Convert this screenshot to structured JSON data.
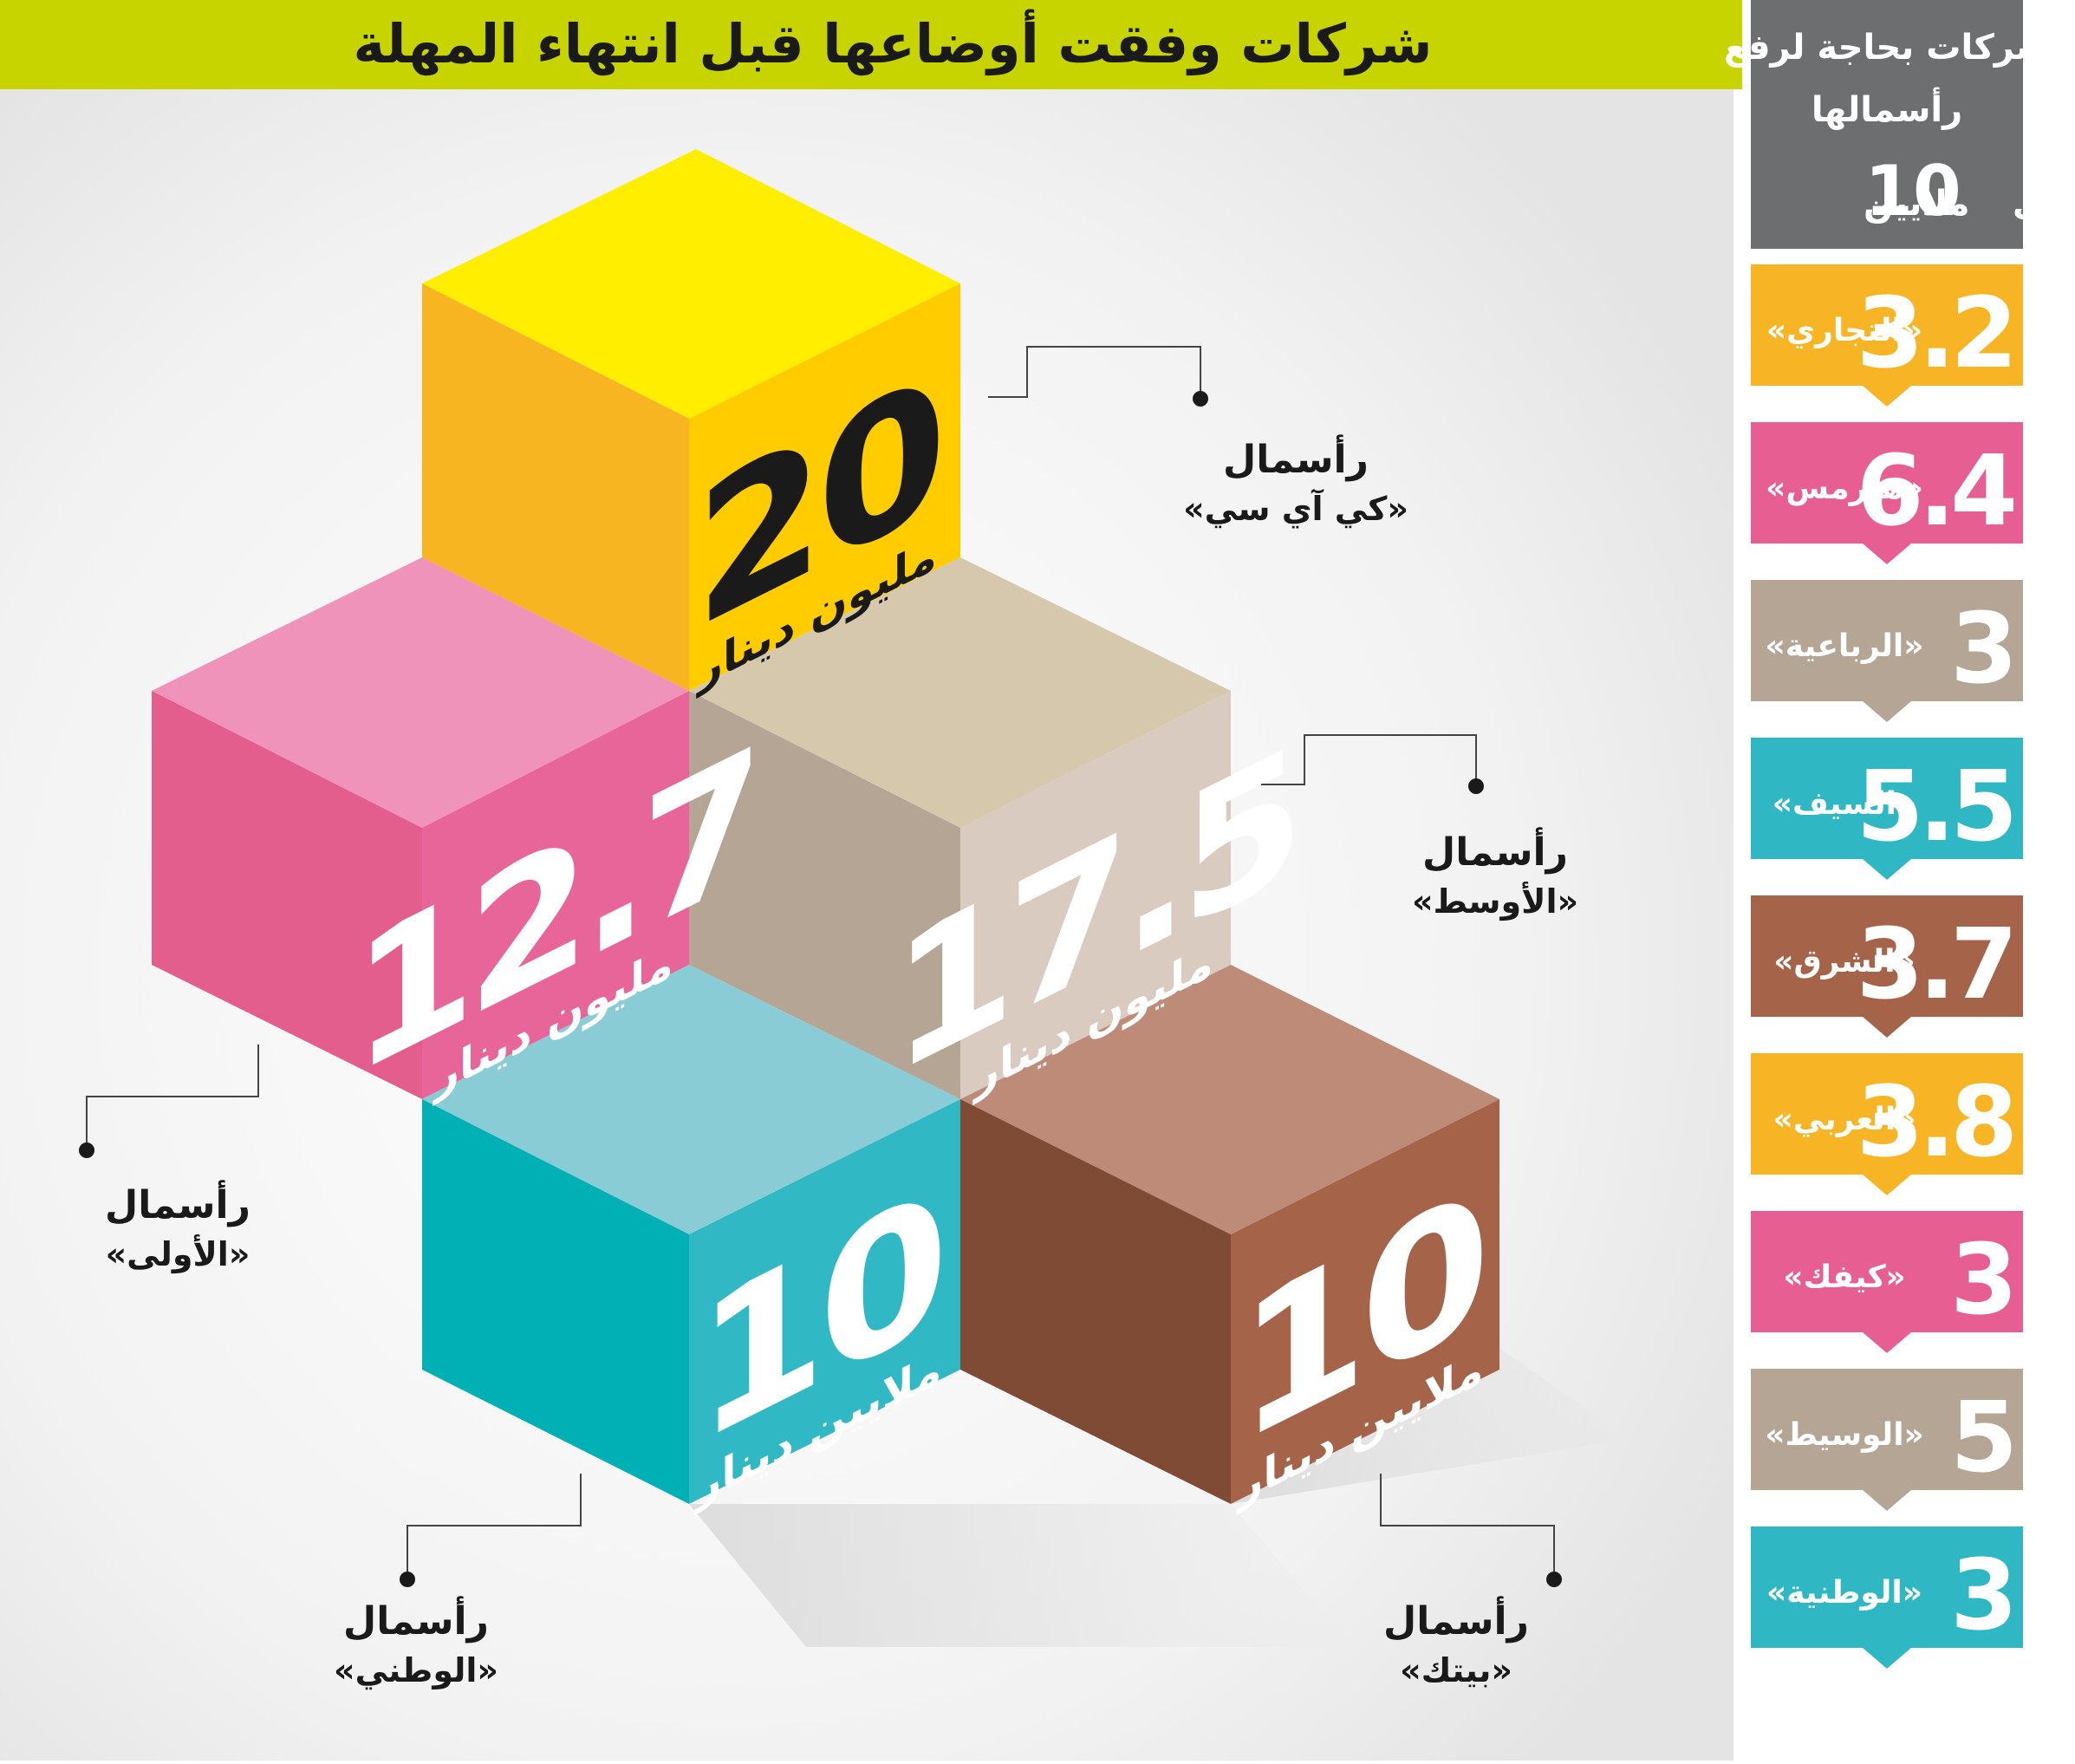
{
  "title": "شركات وفقت أوضاعها قبل انتهاء المهلة",
  "sidebar_header": {
    "line1": "شركات بحاجة لرفع",
    "line2": "رأسمالها",
    "line3_prefix": "إلى",
    "line3_number": "10",
    "line3_suffix": "ملايين"
  },
  "sidebar_items": [
    {
      "value": "3.2",
      "name": "«التجاري»",
      "color": "#f7b526"
    },
    {
      "value": "6.4",
      "name": "«هيرمس»",
      "color": "#e75f92"
    },
    {
      "value": "3",
      "name": "«الرباعية»",
      "color": "#b4a595"
    },
    {
      "value": "5.5",
      "name": "«السيف»",
      "color": "#2fb7c3"
    },
    {
      "value": "3.7",
      "name": "«الشرق»",
      "color": "#a5644a"
    },
    {
      "value": "3.8",
      "name": "«العربي»",
      "color": "#f7b526"
    },
    {
      "value": "3",
      "name": "«كيفك»",
      "color": "#e75f92"
    },
    {
      "value": "5",
      "name": "«الوسيط»",
      "color": "#b4a595"
    },
    {
      "value": "3",
      "name": "«الوطنية»",
      "color": "#2fb7c3"
    }
  ],
  "cubes": [
    {
      "value": "20",
      "unit": "مليون دينار",
      "label_top": "رأسمال",
      "label_name": "«كي آي سي»"
    },
    {
      "value": "12.7",
      "unit": "مليون دينار",
      "label_top": "رأسمال",
      "label_name": "«الأولى»"
    },
    {
      "value": "17.5",
      "unit": "مليون دينار",
      "label_top": "رأسمال",
      "label_name": "«الأوسط»"
    },
    {
      "value": "10",
      "unit": "ملايين دينار",
      "label_top": "رأسمال",
      "label_name": "«الوطني»"
    },
    {
      "value": "10",
      "unit": "ملايين دينار",
      "label_top": "رأسمال",
      "label_name": "«بيتك»"
    }
  ],
  "colors": {
    "title_bar": "#c8d400",
    "sidebar_header_bg": "#6d6e70",
    "yellow": "#ffcc00",
    "pink": "#e75f92",
    "beige": "#b4a595",
    "teal": "#2fb7c3",
    "brown": "#a5644a"
  }
}
